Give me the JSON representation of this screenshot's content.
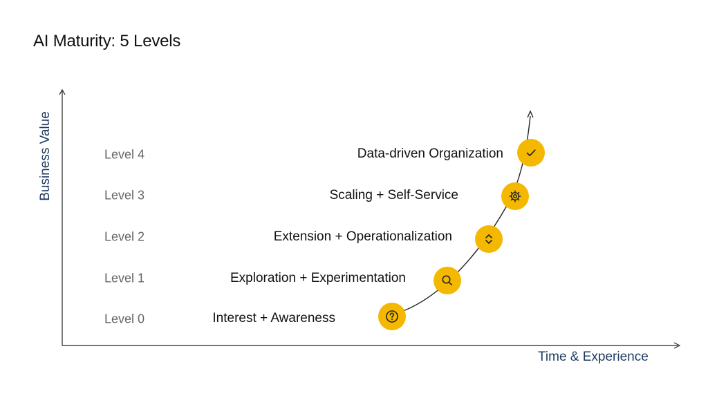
{
  "title": "AI Maturity: 5 Levels",
  "axes": {
    "y_label": "Business Value",
    "x_label": "Time & Experience"
  },
  "colors": {
    "marker": "#f5b800",
    "axis_label": "#1e3a5f",
    "level_text": "#666666",
    "stage_text": "#111111",
    "icon_stroke": "#222222"
  },
  "levels": [
    {
      "level": "Level 0",
      "stage": "Interest + Awareness",
      "icon": "question-icon"
    },
    {
      "level": "Level 1",
      "stage": "Exploration + Experimentation",
      "icon": "search-icon"
    },
    {
      "level": "Level 2",
      "stage": "Extension + Operationalization",
      "icon": "expand-icon"
    },
    {
      "level": "Level 3",
      "stage": "Scaling + Self-Service",
      "icon": "gear-icon"
    },
    {
      "level": "Level 4",
      "stage": "Data-driven Organization",
      "icon": "check-icon"
    }
  ]
}
